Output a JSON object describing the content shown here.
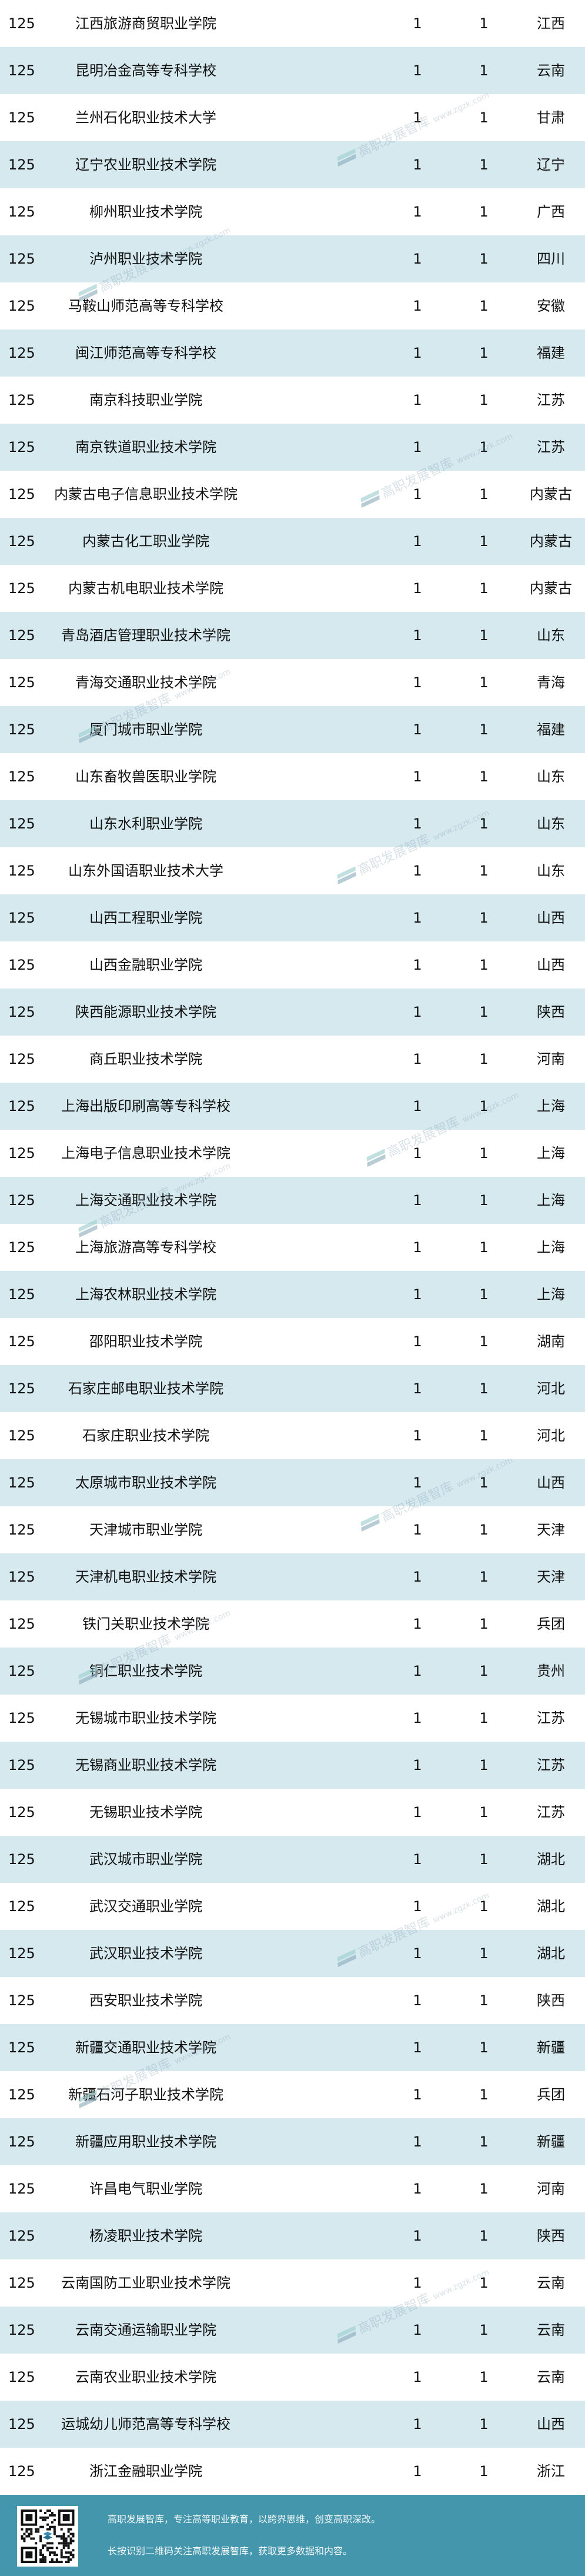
{
  "table": {
    "rows": [
      {
        "rank": "125",
        "name": "江西旅游商贸职业学院",
        "a": "1",
        "b": "1",
        "province": "江西"
      },
      {
        "rank": "125",
        "name": "昆明冶金高等专科学校",
        "a": "1",
        "b": "1",
        "province": "云南"
      },
      {
        "rank": "125",
        "name": "兰州石化职业技术大学",
        "a": "1",
        "b": "1",
        "province": "甘肃"
      },
      {
        "rank": "125",
        "name": "辽宁农业职业技术学院",
        "a": "1",
        "b": "1",
        "province": "辽宁"
      },
      {
        "rank": "125",
        "name": "柳州职业技术学院",
        "a": "1",
        "b": "1",
        "province": "广西"
      },
      {
        "rank": "125",
        "name": "泸州职业技术学院",
        "a": "1",
        "b": "1",
        "province": "四川"
      },
      {
        "rank": "125",
        "name": "马鞍山师范高等专科学校",
        "a": "1",
        "b": "1",
        "province": "安徽"
      },
      {
        "rank": "125",
        "name": "闽江师范高等专科学校",
        "a": "1",
        "b": "1",
        "province": "福建"
      },
      {
        "rank": "125",
        "name": "南京科技职业学院",
        "a": "1",
        "b": "1",
        "province": "江苏"
      },
      {
        "rank": "125",
        "name": "南京铁道职业技术学院",
        "a": "1",
        "b": "1",
        "province": "江苏"
      },
      {
        "rank": "125",
        "name": "内蒙古电子信息职业技术学院",
        "a": "1",
        "b": "1",
        "province": "内蒙古"
      },
      {
        "rank": "125",
        "name": "内蒙古化工职业学院",
        "a": "1",
        "b": "1",
        "province": "内蒙古"
      },
      {
        "rank": "125",
        "name": "内蒙古机电职业技术学院",
        "a": "1",
        "b": "1",
        "province": "内蒙古"
      },
      {
        "rank": "125",
        "name": "青岛酒店管理职业技术学院",
        "a": "1",
        "b": "1",
        "province": "山东"
      },
      {
        "rank": "125",
        "name": "青海交通职业技术学院",
        "a": "1",
        "b": "1",
        "province": "青海"
      },
      {
        "rank": "125",
        "name": "厦门城市职业学院",
        "a": "1",
        "b": "1",
        "province": "福建"
      },
      {
        "rank": "125",
        "name": "山东畜牧兽医职业学院",
        "a": "1",
        "b": "1",
        "province": "山东"
      },
      {
        "rank": "125",
        "name": "山东水利职业学院",
        "a": "1",
        "b": "1",
        "province": "山东"
      },
      {
        "rank": "125",
        "name": "山东外国语职业技术大学",
        "a": "1",
        "b": "1",
        "province": "山东"
      },
      {
        "rank": "125",
        "name": "山西工程职业学院",
        "a": "1",
        "b": "1",
        "province": "山西"
      },
      {
        "rank": "125",
        "name": "山西金融职业学院",
        "a": "1",
        "b": "1",
        "province": "山西"
      },
      {
        "rank": "125",
        "name": "陕西能源职业技术学院",
        "a": "1",
        "b": "1",
        "province": "陕西"
      },
      {
        "rank": "125",
        "name": "商丘职业技术学院",
        "a": "1",
        "b": "1",
        "province": "河南"
      },
      {
        "rank": "125",
        "name": "上海出版印刷高等专科学校",
        "a": "1",
        "b": "1",
        "province": "上海"
      },
      {
        "rank": "125",
        "name": "上海电子信息职业技术学院",
        "a": "1",
        "b": "1",
        "province": "上海"
      },
      {
        "rank": "125",
        "name": "上海交通职业技术学院",
        "a": "1",
        "b": "1",
        "province": "上海"
      },
      {
        "rank": "125",
        "name": "上海旅游高等专科学校",
        "a": "1",
        "b": "1",
        "province": "上海"
      },
      {
        "rank": "125",
        "name": "上海农林职业技术学院",
        "a": "1",
        "b": "1",
        "province": "上海"
      },
      {
        "rank": "125",
        "name": "邵阳职业技术学院",
        "a": "1",
        "b": "1",
        "province": "湖南"
      },
      {
        "rank": "125",
        "name": "石家庄邮电职业技术学院",
        "a": "1",
        "b": "1",
        "province": "河北"
      },
      {
        "rank": "125",
        "name": "石家庄职业技术学院",
        "a": "1",
        "b": "1",
        "province": "河北"
      },
      {
        "rank": "125",
        "name": "太原城市职业技术学院",
        "a": "1",
        "b": "1",
        "province": "山西"
      },
      {
        "rank": "125",
        "name": "天津城市职业学院",
        "a": "1",
        "b": "1",
        "province": "天津"
      },
      {
        "rank": "125",
        "name": "天津机电职业技术学院",
        "a": "1",
        "b": "1",
        "province": "天津"
      },
      {
        "rank": "125",
        "name": "铁门关职业技术学院",
        "a": "1",
        "b": "1",
        "province": "兵团"
      },
      {
        "rank": "125",
        "name": "铜仁职业技术学院",
        "a": "1",
        "b": "1",
        "province": "贵州"
      },
      {
        "rank": "125",
        "name": "无锡城市职业技术学院",
        "a": "1",
        "b": "1",
        "province": "江苏"
      },
      {
        "rank": "125",
        "name": "无锡商业职业技术学院",
        "a": "1",
        "b": "1",
        "province": "江苏"
      },
      {
        "rank": "125",
        "name": "无锡职业技术学院",
        "a": "1",
        "b": "1",
        "province": "江苏"
      },
      {
        "rank": "125",
        "name": "武汉城市职业学院",
        "a": "1",
        "b": "1",
        "province": "湖北"
      },
      {
        "rank": "125",
        "name": "武汉交通职业学院",
        "a": "1",
        "b": "1",
        "province": "湖北"
      },
      {
        "rank": "125",
        "name": "武汉职业技术学院",
        "a": "1",
        "b": "1",
        "province": "湖北"
      },
      {
        "rank": "125",
        "name": "西安职业技术学院",
        "a": "1",
        "b": "1",
        "province": "陕西"
      },
      {
        "rank": "125",
        "name": "新疆交通职业技术学院",
        "a": "1",
        "b": "1",
        "province": "新疆"
      },
      {
        "rank": "125",
        "name": "新疆石河子职业技术学院",
        "a": "1",
        "b": "1",
        "province": "兵团"
      },
      {
        "rank": "125",
        "name": "新疆应用职业技术学院",
        "a": "1",
        "b": "1",
        "province": "新疆"
      },
      {
        "rank": "125",
        "name": "许昌电气职业学院",
        "a": "1",
        "b": "1",
        "province": "河南"
      },
      {
        "rank": "125",
        "name": "杨凌职业技术学院",
        "a": "1",
        "b": "1",
        "province": "陕西"
      },
      {
        "rank": "125",
        "name": "云南国防工业职业技术学院",
        "a": "1",
        "b": "1",
        "province": "云南"
      },
      {
        "rank": "125",
        "name": "云南交通运输职业学院",
        "a": "1",
        "b": "1",
        "province": "云南"
      },
      {
        "rank": "125",
        "name": "云南农业职业技术学院",
        "a": "1",
        "b": "1",
        "province": "云南"
      },
      {
        "rank": "125",
        "name": "运城幼儿师范高等专科学校",
        "a": "1",
        "b": "1",
        "province": "山西"
      },
      {
        "rank": "125",
        "name": "浙江金融职业学院",
        "a": "1",
        "b": "1",
        "province": "浙江"
      }
    ]
  },
  "watermark": {
    "text": "高职发展智库",
    "url": "www.zgzk.com"
  },
  "footer": {
    "line1": "高职发展智库，专注高等职业教育，以跨界思维，创变高职深改。",
    "line2": "长按识别二维码关注高职发展智库，获取更多数据和内容。"
  },
  "colors": {
    "row_alt": "#d5e9ef",
    "footer_bg": "#4396ab"
  }
}
